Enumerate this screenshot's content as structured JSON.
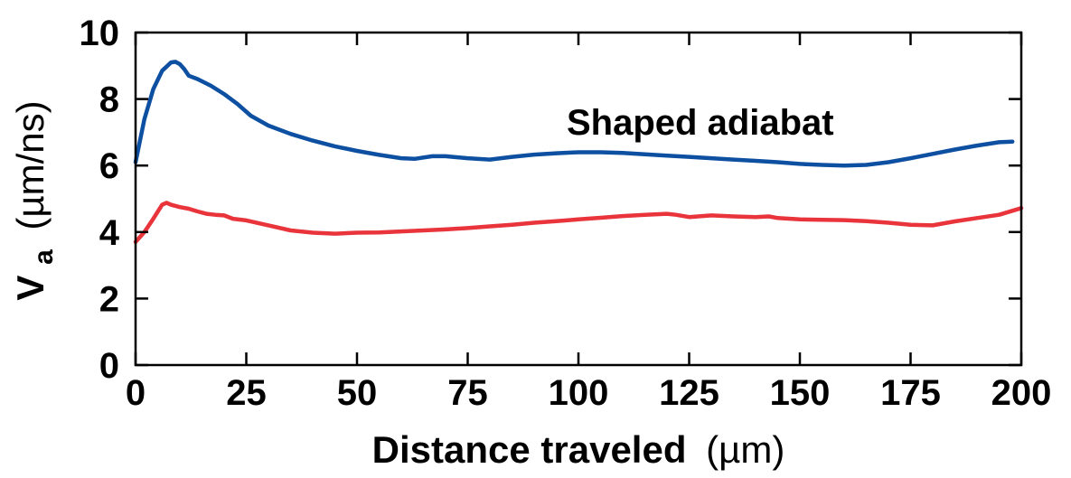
{
  "chart_data": {
    "type": "line",
    "xlabel_main": "Distance traveled",
    "xlabel_unit": "(µm)",
    "ylabel_main": "V",
    "ylabel_sub": "a",
    "ylabel_unit": "(µm/ns)",
    "xlim": [
      0,
      200
    ],
    "ylim": [
      0,
      10
    ],
    "xticks": [
      0,
      25,
      50,
      75,
      100,
      125,
      150,
      175,
      200
    ],
    "yticks": [
      0,
      2,
      4,
      6,
      8,
      10
    ],
    "xtick_labels": [
      "0",
      "25",
      "50",
      "75",
      "100",
      "125",
      "150",
      "175",
      "200"
    ],
    "ytick_labels": [
      "0",
      "2",
      "4",
      "6",
      "8",
      "10"
    ],
    "annotation": "Shaped adiabat",
    "grid": false,
    "series": [
      {
        "color": "#0d4fa0",
        "x": [
          0,
          2,
          4,
          6,
          8,
          9,
          10,
          11,
          12,
          14,
          17,
          20,
          23,
          26,
          30,
          35,
          40,
          45,
          50,
          55,
          60,
          63,
          67,
          70,
          75,
          80,
          85,
          90,
          95,
          100,
          105,
          110,
          115,
          120,
          125,
          130,
          135,
          140,
          145,
          150,
          155,
          160,
          165,
          170,
          175,
          180,
          185,
          190,
          195,
          198
        ],
        "y": [
          6.1,
          7.4,
          8.3,
          8.85,
          9.1,
          9.12,
          9.05,
          8.9,
          8.7,
          8.6,
          8.4,
          8.15,
          7.85,
          7.5,
          7.2,
          6.95,
          6.75,
          6.58,
          6.44,
          6.32,
          6.22,
          6.2,
          6.28,
          6.28,
          6.22,
          6.18,
          6.26,
          6.33,
          6.37,
          6.4,
          6.4,
          6.38,
          6.34,
          6.3,
          6.26,
          6.22,
          6.18,
          6.14,
          6.1,
          6.05,
          6.02,
          6.0,
          6.02,
          6.1,
          6.22,
          6.35,
          6.48,
          6.6,
          6.7,
          6.72
        ]
      },
      {
        "color": "#e8343a",
        "x": [
          0,
          2,
          4,
          6,
          7,
          8,
          10,
          12,
          14,
          16,
          18,
          20,
          22,
          25,
          30,
          35,
          40,
          45,
          50,
          55,
          60,
          65,
          70,
          75,
          80,
          85,
          90,
          95,
          100,
          105,
          110,
          115,
          120,
          122,
          125,
          130,
          135,
          140,
          143,
          145,
          150,
          155,
          160,
          165,
          170,
          175,
          180,
          185,
          190,
          195,
          200
        ],
        "y": [
          3.7,
          4.0,
          4.4,
          4.82,
          4.88,
          4.82,
          4.75,
          4.7,
          4.62,
          4.55,
          4.52,
          4.5,
          4.4,
          4.35,
          4.2,
          4.05,
          3.98,
          3.95,
          3.98,
          3.99,
          4.02,
          4.05,
          4.08,
          4.12,
          4.17,
          4.22,
          4.28,
          4.33,
          4.38,
          4.43,
          4.48,
          4.52,
          4.55,
          4.52,
          4.45,
          4.5,
          4.47,
          4.45,
          4.47,
          4.42,
          4.38,
          4.37,
          4.36,
          4.33,
          4.28,
          4.22,
          4.2,
          4.32,
          4.42,
          4.52,
          4.72
        ]
      }
    ]
  }
}
